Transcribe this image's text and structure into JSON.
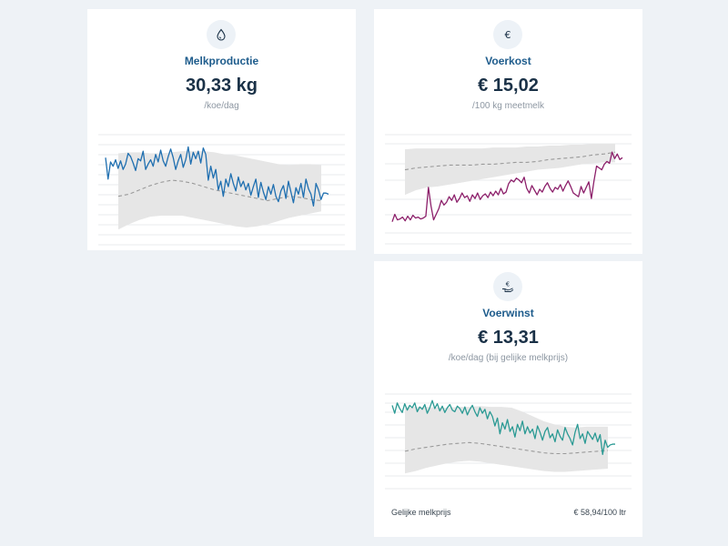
{
  "cards": {
    "milk": {
      "title": "Melkproductie",
      "value": "30,33 kg",
      "unit": "/koe/dag",
      "icon": "drop-icon",
      "color": "#1f6fb0",
      "title_color": "#1e5c8c"
    },
    "feed": {
      "title": "Voerkost",
      "value": "€ 15,02",
      "unit": "/100 kg meetmelk",
      "icon": "euro-icon",
      "color": "#8c1f6a",
      "title_color": "#1e5c8c"
    },
    "profit": {
      "title": "Voerwinst",
      "value": "€ 13,31",
      "unit": "/koe/dag (bij gelijke melkprijs)",
      "icon": "hand-coin-icon",
      "color": "#2b9a94",
      "title_color": "#1e5c8c",
      "footer_label": "Gelijke melkprijs",
      "footer_value": "€ 58,94/100 ltr"
    }
  },
  "colors": {
    "band": "#e6e6e6",
    "median": "#9a9a9a",
    "grid": "#e8ebee",
    "background": "#eef2f6"
  },
  "chart_data": [
    {
      "type": "line",
      "title": "Melkproductie",
      "ylim": [
        0,
        1
      ],
      "series": [
        {
          "values": [
            0.82,
            0.62,
            0.78,
            0.74,
            0.8,
            0.72,
            0.79,
            0.71,
            0.76,
            0.86,
            0.83,
            0.77,
            0.7,
            0.81,
            0.79,
            0.88,
            0.71,
            0.76,
            0.8,
            0.74,
            0.85,
            0.78,
            0.89,
            0.79,
            0.74,
            0.83,
            0.9,
            0.82,
            0.71,
            0.79,
            0.85,
            0.73,
            0.8,
            0.92,
            0.76,
            0.87,
            0.81,
            0.88,
            0.77,
            0.91,
            0.85,
            0.61,
            0.74,
            0.63,
            0.71,
            0.52,
            0.6,
            0.46,
            0.62,
            0.55,
            0.67,
            0.58,
            0.51,
            0.64,
            0.55,
            0.6,
            0.52,
            0.58,
            0.47,
            0.55,
            0.62,
            0.45,
            0.59,
            0.5,
            0.43,
            0.55,
            0.48,
            0.57,
            0.46,
            0.41,
            0.51,
            0.56,
            0.44,
            0.6,
            0.5,
            0.4,
            0.54,
            0.48,
            0.58,
            0.45,
            0.62,
            0.53,
            0.48,
            0.37,
            0.58,
            0.52,
            0.43,
            0.49,
            0.49,
            0.48
          ]
        },
        {
          "values": [
            0.46,
            0.48,
            0.52,
            0.56,
            0.59,
            0.61,
            0.6,
            0.58,
            0.55,
            0.52,
            0.5,
            0.48,
            0.46,
            0.44,
            0.42,
            0.44,
            0.46,
            0.45,
            0.43,
            0.42
          ]
        },
        {
          "values": [
            0.86,
            0.87,
            0.87,
            0.86,
            0.86,
            0.87,
            0.88,
            0.88,
            0.88,
            0.87,
            0.85,
            0.84,
            0.82,
            0.8,
            0.78,
            0.76,
            0.75,
            0.76,
            0.76,
            0.75
          ]
        },
        {
          "values": [
            0.15,
            0.2,
            0.24,
            0.27,
            0.28,
            0.28,
            0.28,
            0.26,
            0.24,
            0.22,
            0.2,
            0.18,
            0.17,
            0.18,
            0.2,
            0.23,
            0.26,
            0.28,
            0.3,
            0.32
          ]
        }
      ]
    },
    {
      "type": "line",
      "title": "Voerkost",
      "ylim": [
        0,
        1
      ],
      "series": [
        {
          "values": [
            0.16,
            0.24,
            0.18,
            0.19,
            0.21,
            0.17,
            0.22,
            0.18,
            0.23,
            0.2,
            0.21,
            0.19,
            0.2,
            0.22,
            0.53,
            0.33,
            0.18,
            0.24,
            0.3,
            0.39,
            0.34,
            0.37,
            0.43,
            0.39,
            0.45,
            0.37,
            0.41,
            0.47,
            0.42,
            0.44,
            0.38,
            0.45,
            0.41,
            0.47,
            0.4,
            0.44,
            0.46,
            0.42,
            0.48,
            0.44,
            0.49,
            0.45,
            0.52,
            0.46,
            0.48,
            0.57,
            0.61,
            0.59,
            0.63,
            0.61,
            0.58,
            0.64,
            0.52,
            0.47,
            0.55,
            0.5,
            0.45,
            0.51,
            0.48,
            0.54,
            0.58,
            0.52,
            0.48,
            0.53,
            0.51,
            0.56,
            0.49,
            0.55,
            0.6,
            0.54,
            0.47,
            0.45,
            0.43,
            0.54,
            0.47,
            0.53,
            0.59,
            0.41,
            0.6,
            0.76,
            0.74,
            0.72,
            0.78,
            0.81,
            0.79,
            0.91,
            0.84,
            0.89,
            0.83,
            0.85
          ]
        },
        {
          "values": [
            0.72,
            0.74,
            0.75,
            0.76,
            0.77,
            0.77,
            0.77,
            0.78,
            0.78,
            0.79,
            0.8,
            0.8,
            0.81,
            0.83,
            0.84,
            0.85,
            0.86,
            0.88,
            0.89,
            0.91
          ]
        },
        {
          "values": [
            0.94,
            0.95,
            0.95,
            0.95,
            0.95,
            0.95,
            0.95,
            0.95,
            0.96,
            0.96,
            0.96,
            0.97,
            0.97,
            0.98,
            0.98,
            0.99,
            0.99,
            1.0,
            1.0,
            1.0
          ]
        },
        {
          "values": [
            0.45,
            0.5,
            0.53,
            0.54,
            0.56,
            0.58,
            0.6,
            0.62,
            0.64,
            0.66,
            0.68,
            0.7,
            0.72,
            0.73,
            0.74,
            0.76,
            0.78,
            0.79,
            0.8,
            0.8
          ]
        }
      ]
    },
    {
      "type": "line",
      "title": "Voerwinst",
      "ylim": [
        0,
        1
      ],
      "series": [
        {
          "values": [
            0.88,
            0.78,
            0.91,
            0.84,
            0.79,
            0.9,
            0.82,
            0.88,
            0.85,
            0.91,
            0.8,
            0.86,
            0.83,
            0.89,
            0.78,
            0.85,
            0.94,
            0.84,
            0.9,
            0.81,
            0.87,
            0.79,
            0.85,
            0.89,
            0.82,
            0.8,
            0.87,
            0.84,
            0.78,
            0.86,
            0.76,
            0.83,
            0.88,
            0.8,
            0.74,
            0.85,
            0.78,
            0.83,
            0.71,
            0.8,
            0.74,
            0.62,
            0.72,
            0.52,
            0.66,
            0.58,
            0.7,
            0.55,
            0.61,
            0.48,
            0.64,
            0.56,
            0.68,
            0.52,
            0.61,
            0.53,
            0.58,
            0.46,
            0.62,
            0.54,
            0.44,
            0.55,
            0.6,
            0.47,
            0.52,
            0.42,
            0.57,
            0.49,
            0.44,
            0.6,
            0.52,
            0.46,
            0.38,
            0.54,
            0.64,
            0.46,
            0.52,
            0.4,
            0.55,
            0.5,
            0.45,
            0.53,
            0.42,
            0.51,
            0.26,
            0.44,
            0.35,
            0.38,
            0.39,
            0.39
          ]
        },
        {
          "values": [
            0.3,
            0.33,
            0.35,
            0.37,
            0.39,
            0.4,
            0.41,
            0.4,
            0.38,
            0.36,
            0.34,
            0.32,
            0.3,
            0.28,
            0.27,
            0.27,
            0.28,
            0.29,
            0.3,
            0.31
          ]
        },
        {
          "values": [
            0.85,
            0.86,
            0.86,
            0.85,
            0.85,
            0.86,
            0.86,
            0.87,
            0.86,
            0.86,
            0.85,
            0.8,
            0.74,
            0.68,
            0.64,
            0.61,
            0.6,
            0.61,
            0.61,
            0.61
          ]
        },
        {
          "values": [
            0.02,
            0.05,
            0.09,
            0.12,
            0.15,
            0.17,
            0.18,
            0.17,
            0.15,
            0.13,
            0.11,
            0.09,
            0.07,
            0.05,
            0.04,
            0.04,
            0.05,
            0.06,
            0.07,
            0.08
          ]
        }
      ]
    }
  ]
}
